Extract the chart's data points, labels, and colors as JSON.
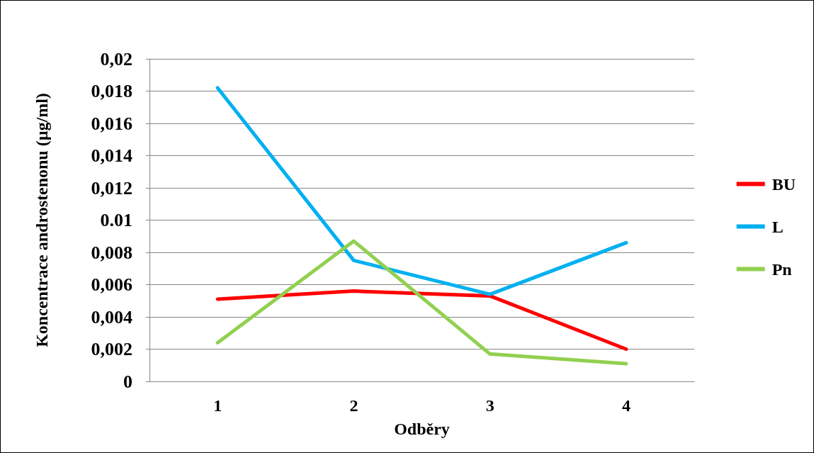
{
  "chart_data": {
    "type": "line",
    "xlabel": "Odběry",
    "ylabel": "Koncentrace androstenonu (µg/ml)",
    "categories": [
      "1",
      "2",
      "3",
      "4"
    ],
    "series": [
      {
        "name": "BU",
        "color": "#ff0000",
        "values": [
          0.0051,
          0.0056,
          0.0053,
          0.002
        ]
      },
      {
        "name": "L",
        "color": "#00b0f0",
        "values": [
          0.0182,
          0.0075,
          0.0054,
          0.0086
        ]
      },
      {
        "name": "Pn",
        "color": "#92d050",
        "values": [
          0.0024,
          0.0087,
          0.0017,
          0.0011
        ]
      }
    ],
    "ylim": [
      0,
      0.02
    ],
    "yticks": [
      0,
      {
        "value": 0.002,
        "label": "0,002"
      },
      {
        "value": 0.004,
        "label": "0,004"
      },
      {
        "value": 0.006,
        "label": "0,006"
      },
      {
        "value": 0.008,
        "label": "0,008"
      },
      {
        "value": 0.01,
        "label": "0.01"
      },
      {
        "value": 0.012,
        "label": "0,012"
      },
      {
        "value": 0.014,
        "label": "0,014"
      },
      {
        "value": 0.016,
        "label": "0,016"
      },
      {
        "value": 0.018,
        "label": "0,018"
      },
      {
        "value": 0.02,
        "label": "0,02"
      }
    ],
    "grid": "y",
    "legend": "right",
    "marker": "none",
    "line_style": "solid"
  }
}
